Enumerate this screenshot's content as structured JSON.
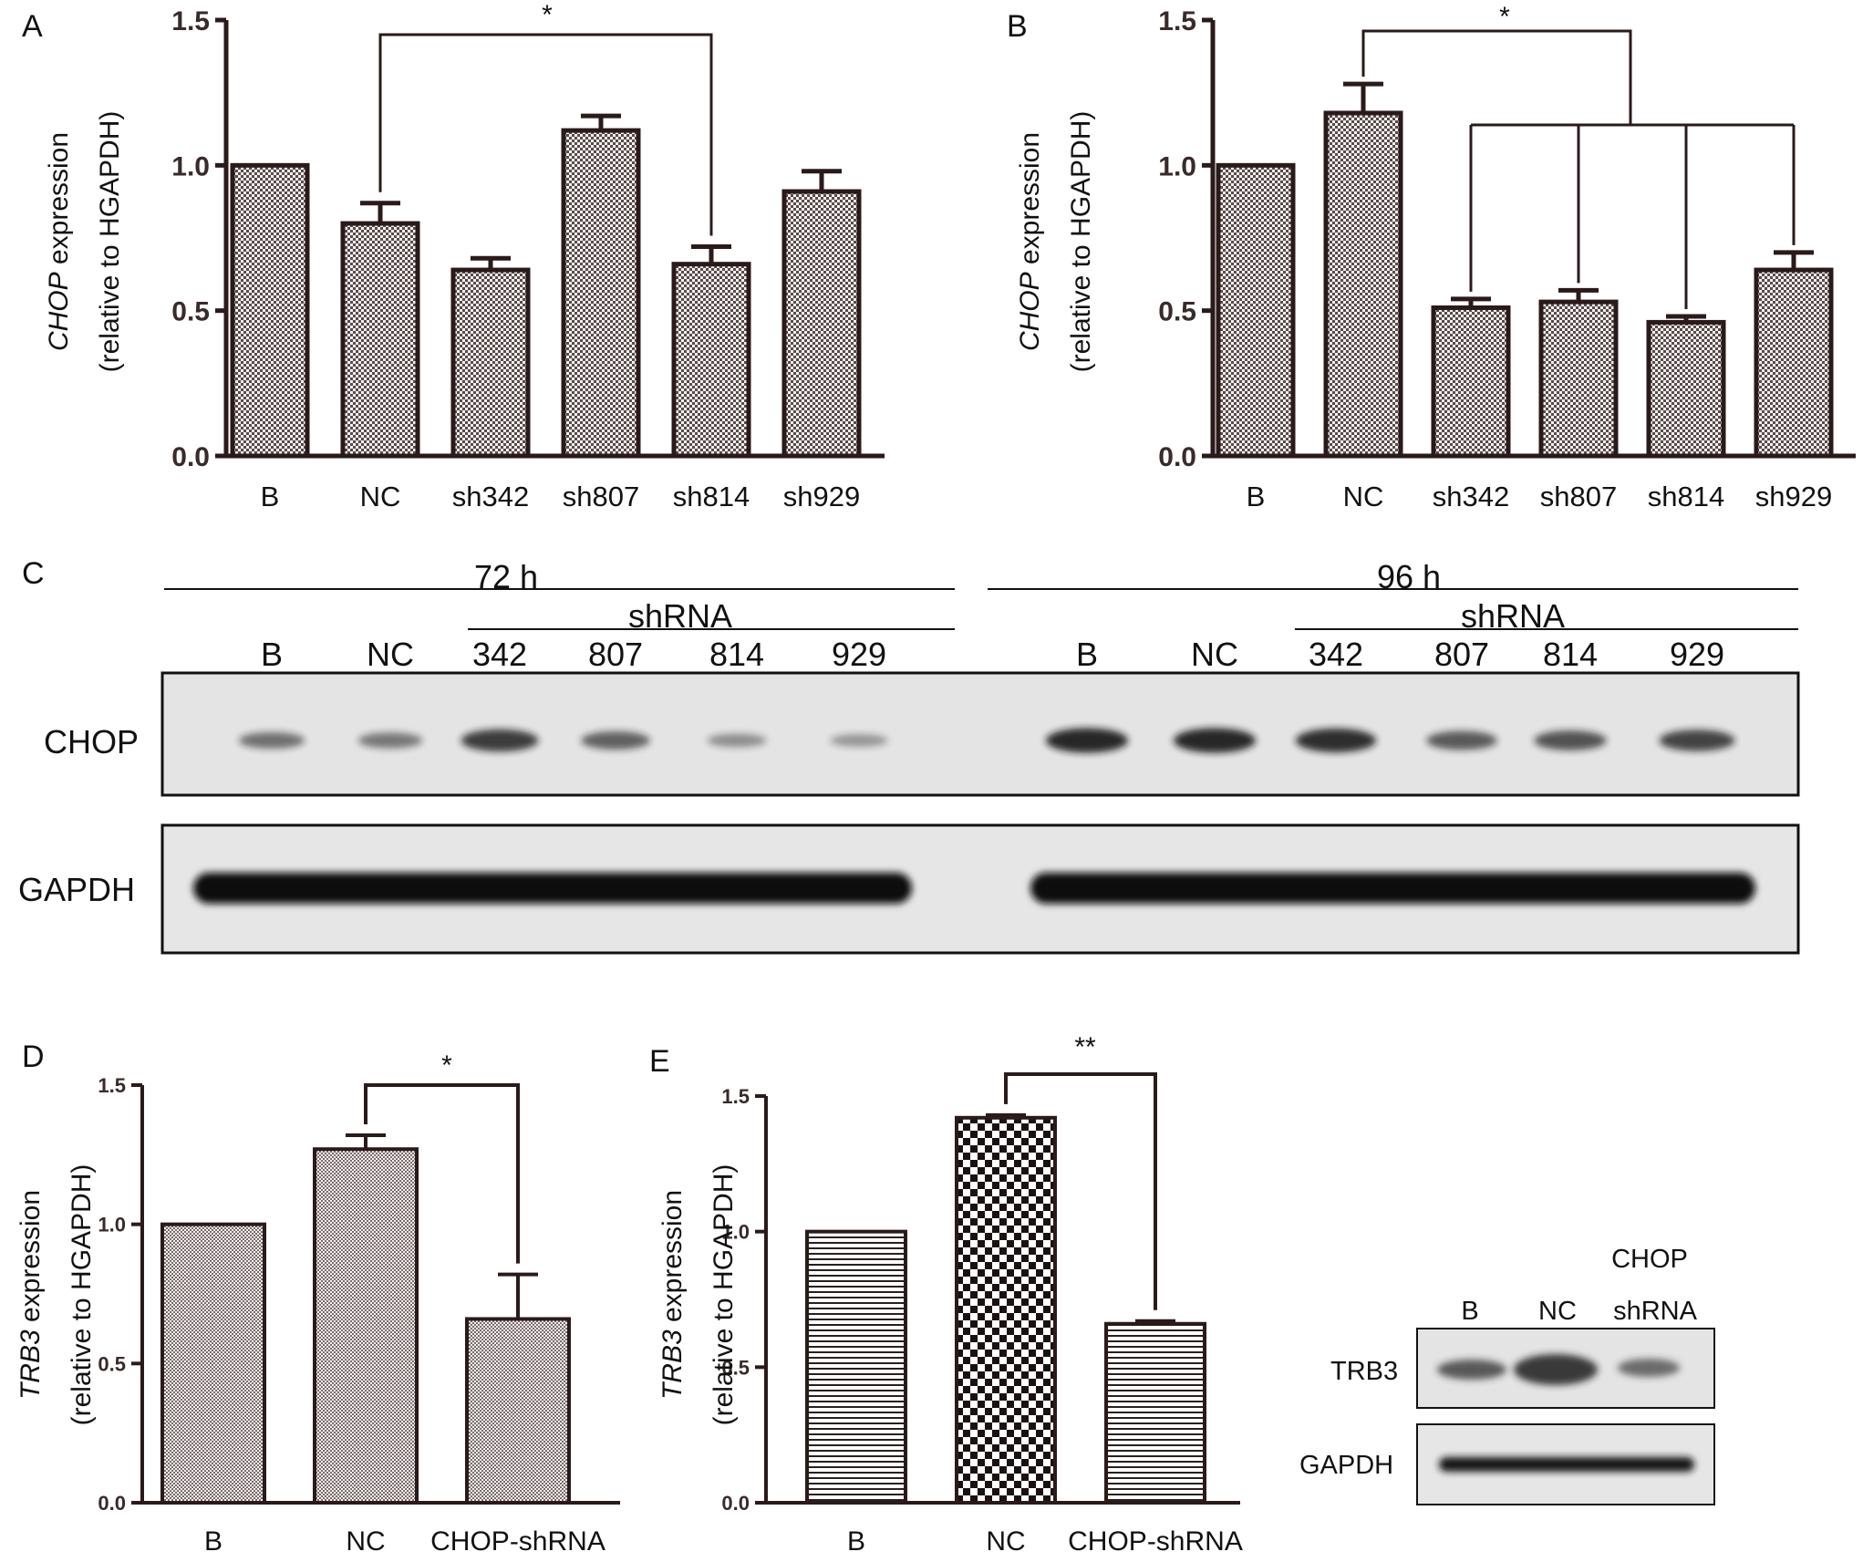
{
  "chart_data": [
    {
      "panel": "A",
      "type": "bar",
      "ylabel_gene": "CHOP",
      "ylabel_rest": " expression",
      "ylabel_line2": "(relative to HGAPDH)",
      "categories": [
        "B",
        "NC",
        "sh342",
        "sh807",
        "sh814",
        "sh929"
      ],
      "values": [
        1.0,
        0.8,
        0.64,
        1.12,
        0.66,
        0.91
      ],
      "errors": [
        0,
        0.07,
        0.04,
        0.05,
        0.06,
        0.07
      ],
      "ylim": [
        0,
        1.5
      ],
      "yticks": [
        "0.0",
        "0.5",
        "1.0",
        "1.5"
      ],
      "significance": "*"
    },
    {
      "panel": "B",
      "type": "bar",
      "ylabel_gene": "CHOP",
      "ylabel_rest": " expression",
      "ylabel_line2": "(relative to HGAPDH)",
      "categories": [
        "B",
        "NC",
        "sh342",
        "sh807",
        "sh814",
        "sh929"
      ],
      "values": [
        1.0,
        1.18,
        0.51,
        0.53,
        0.46,
        0.64
      ],
      "errors": [
        0,
        0.1,
        0.03,
        0.04,
        0.02,
        0.06
      ],
      "ylim": [
        0,
        1.5
      ],
      "yticks": [
        "0.0",
        "0.5",
        "1.0",
        "1.5"
      ],
      "significance": "*"
    },
    {
      "panel": "D",
      "type": "bar",
      "ylabel_gene": "TRB3",
      "ylabel_rest": " expression",
      "ylabel_line2": "(relative to HGAPDH)",
      "categories": [
        "B",
        "NC",
        "CHOP-shRNA"
      ],
      "values": [
        1.0,
        1.27,
        0.66
      ],
      "errors": [
        0,
        0.05,
        0.16
      ],
      "ylim": [
        0,
        1.5
      ],
      "yticks": [
        "0.0",
        "0.5",
        "1.0",
        "1.5"
      ],
      "significance": "*"
    },
    {
      "panel": "E",
      "type": "bar",
      "ylabel_gene": "TRB3",
      "ylabel_rest": " expression",
      "ylabel_line2": "(relative to HGAPDH)",
      "categories": [
        "B",
        "NC",
        "CHOP-shRNA"
      ],
      "values": [
        1.0,
        1.42,
        0.66
      ],
      "errors": [
        0,
        0.01,
        0.01
      ],
      "ylim": [
        0,
        1.5
      ],
      "yticks": [
        "0.0",
        "0.5",
        "1.0",
        "1.5"
      ],
      "significance": "**"
    }
  ],
  "blot_c": {
    "panel": "C",
    "time_left": "72 h",
    "time_right": "96 h",
    "shrna": "shRNA",
    "lanes_left": [
      "B",
      "NC",
      "342",
      "807",
      "814",
      "929"
    ],
    "lanes_right": [
      "B",
      "NC",
      "342",
      "807",
      "814",
      "929"
    ],
    "row1": "CHOP",
    "row2": "GAPDH",
    "chop_intensity": [
      0.45,
      0.4,
      0.8,
      0.55,
      0.25,
      0.2,
      0.95,
      0.95,
      0.9,
      0.6,
      0.65,
      0.75
    ]
  },
  "blot_e": {
    "header1": "CHOP",
    "lanes": [
      "B",
      "NC",
      "shRNA"
    ],
    "row1": "TRB3",
    "row2": "GAPDH"
  },
  "colors": {
    "bar_edge": "#2b1a1a",
    "pattern_dark": "#2a1e1e",
    "axis": "#2b1a1a"
  }
}
